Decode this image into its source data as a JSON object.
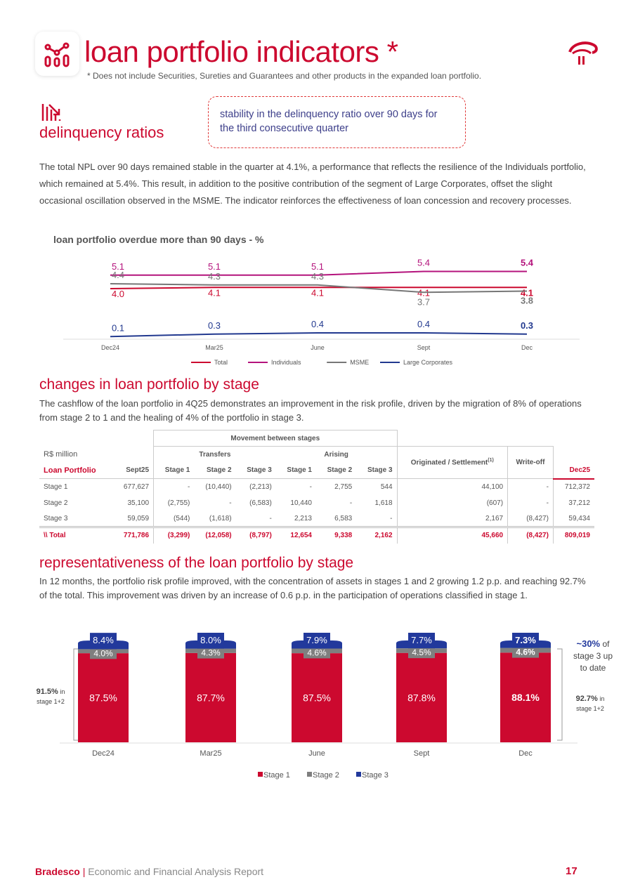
{
  "header": {
    "title": "loan portfolio indicators *",
    "note": "* Does not include Securities, Sureties and Guarantees and other products in the expanded loan portfolio.",
    "icon": "chart-nodes-icon",
    "logo": "bradesco-logo"
  },
  "delinquency": {
    "title": "delinquency ratios",
    "icon": "declining-bars-icon",
    "callout": "stability in the delinquency ratio over 90 days for the third consecutive quarter",
    "paragraph": "The total NPL over 90 days remained stable in the quarter at 4.1%, a performance that reflects the resilience of the Individuals portfolio, which remained at 5.4%. This result, in addition to the positive contribution of the segment of Large Corporates, offset the slight occasional oscillation observed in the MSME. The indicator reinforces the effectiveness of loan concession and recovery processes."
  },
  "stage_changes": {
    "title": "changes in loan portfolio by stage",
    "paragraph": "The cashflow of the loan portfolio in 4Q25 demonstrates an improvement in the risk profile, driven by the migration of 8% of operations from stage 2 to 1 and the healing of 4% of the portfolio in stage 3.",
    "table": {
      "unit": "R$ million",
      "row_header": "Loan Portfolio",
      "group": "Movement between stages",
      "transfers": "Transfers",
      "arising": "Arising",
      "columns": [
        "Sept25",
        "Stage 1",
        "Stage 2",
        "Stage 3",
        "Stage 1",
        "Stage 2",
        "Stage 3",
        "Originated / Settlement",
        "Write-off",
        "Dec25"
      ],
      "footnote_mark": "(1)",
      "rows": [
        [
          "Stage 1",
          "677,627",
          "-",
          "(10,440)",
          "(2,213)",
          "-",
          "2,755",
          "544",
          "44,100",
          "-",
          "712,372"
        ],
        [
          "Stage 2",
          "35,100",
          "(2,755)",
          "-",
          "(6,583)",
          "10,440",
          "-",
          "1,618",
          "(607)",
          "-",
          "37,212"
        ],
        [
          "Stage 3",
          "59,059",
          "(544)",
          "(1,618)",
          "-",
          "2,213",
          "6,583",
          "-",
          "2,167",
          "(8,427)",
          "59,434"
        ]
      ],
      "total": [
        "\\\\ Total",
        "771,786",
        "(3,299)",
        "(12,058)",
        "(8,797)",
        "12,654",
        "9,338",
        "2,162",
        "45,660",
        "(8,427)",
        "809,019"
      ]
    }
  },
  "representativeness": {
    "title": "representativeness of the loan portfolio by stage",
    "paragraph": "In 12 months, the portfolio risk profile improved, with the concentration of assets in stages 1 and 2 growing 1.2 p.p. and reaching 92.7% of the total. This improvement was driven by an increase of 0.6 p.p. in the participation of operations classified in stage 1.",
    "left_note_value": "91.5%",
    "left_note_text": "in stage 1+2",
    "right_note_value": "92.7%",
    "right_note_text": "in stage 1+2",
    "stage3_note_value": "~30%",
    "stage3_note_text": "of stage 3 up to date"
  },
  "chart_data": [
    {
      "type": "line",
      "title": "loan portfolio overdue more than 90 days - %",
      "categories": [
        "Dec24",
        "Mar25",
        "June",
        "Sept",
        "Dec"
      ],
      "series": [
        {
          "name": "Total",
          "color": "#cc092f",
          "values": [
            4.0,
            4.1,
            4.1,
            4.1,
            4.1
          ]
        },
        {
          "name": "Individuals",
          "color": "#b4137c",
          "values": [
            5.1,
            5.1,
            5.1,
            5.4,
            5.4
          ]
        },
        {
          "name": "MSME",
          "color": "#777777",
          "values": [
            4.4,
            4.3,
            4.3,
            3.7,
            3.8
          ]
        },
        {
          "name": "Large Corporates",
          "color": "#22398f",
          "values": [
            0.1,
            0.3,
            0.4,
            0.4,
            0.3
          ]
        }
      ],
      "legend": "bottom"
    },
    {
      "type": "bar",
      "stacked": true,
      "categories": [
        "Dec24",
        "Mar25",
        "June",
        "Sept",
        "Dec"
      ],
      "series": [
        {
          "name": "Stage 1",
          "color": "#cc092f",
          "values": [
            87.5,
            87.7,
            87.5,
            87.8,
            88.1
          ]
        },
        {
          "name": "Stage 2",
          "color": "#7f7f7f",
          "values": [
            4.0,
            4.3,
            4.6,
            4.5,
            4.6
          ]
        },
        {
          "name": "Stage 3",
          "color": "#22399c",
          "values": [
            8.4,
            8.0,
            7.9,
            7.7,
            7.3
          ]
        }
      ],
      "legend": "bottom"
    }
  ],
  "footer": {
    "brand": "Bradesco",
    "separator": "|",
    "report": "Economic and Financial Analysis Report",
    "page": "17"
  }
}
